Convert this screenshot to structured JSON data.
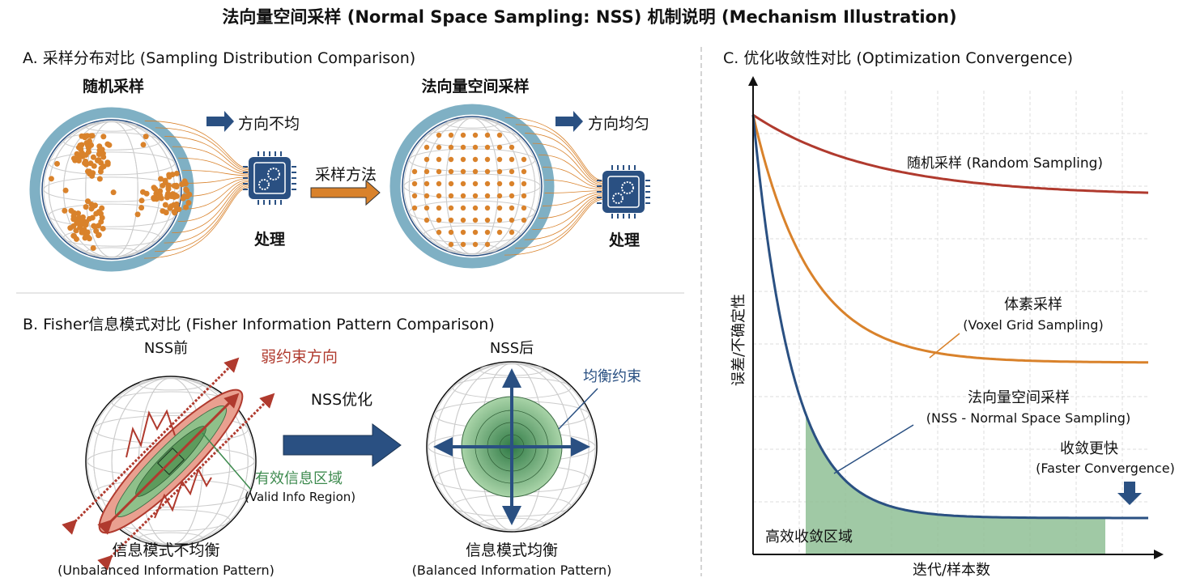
{
  "title": "法向量空间采样 (Normal Space Sampling: NSS) 机制说明 (Mechanism Illustration)",
  "section_a": {
    "title": "A. 采样分布对比 (Sampling Distribution Comparison)",
    "random_label": "随机采样",
    "nss_label": "法向量空间采样",
    "uneven_label": "方向不均",
    "even_label": "方向均匀",
    "method_label": "采样方法",
    "process_label_1": "处理",
    "process_label_2": "处理"
  },
  "section_b": {
    "title": "B. Fisher信息模式对比 (Fisher Information Pattern Comparison)",
    "before_label": "NSS前",
    "after_label": "NSS后",
    "weak_label": "弱约束方向",
    "valid_label": "有效信息区域",
    "valid_label_en": "(Valid Info Region)",
    "optimize_label": "NSS优化",
    "balanced_label": "均衡约束",
    "unbalanced_caption": "信息模式不均衡",
    "unbalanced_caption_en": "(Unbalanced Information Pattern)",
    "balanced_caption": "信息模式均衡",
    "balanced_caption_en": "(Balanced Information Pattern)"
  },
  "section_c": {
    "title": "C. 优化收敛性对比 (Optimization Convergence)",
    "ylabel": "误差/不确定性",
    "xlabel": "迭代/样本数",
    "random_curve": "随机采样 (Random Sampling)",
    "voxel_curve": "体素采样",
    "voxel_curve_en": "(Voxel Grid Sampling)",
    "nss_curve": "法向量空间采样",
    "nss_curve_en": "(NSS - Normal Space Sampling)",
    "faster": "收敛更快",
    "faster_en": "(Faster Convergence)",
    "region": "高效收敛区域"
  },
  "colors": {
    "red": "#b03a2e",
    "orange": "#d9822b",
    "blue": "#2a5082",
    "ring": "#7fb0c4",
    "green": "#3d8a4e"
  }
}
